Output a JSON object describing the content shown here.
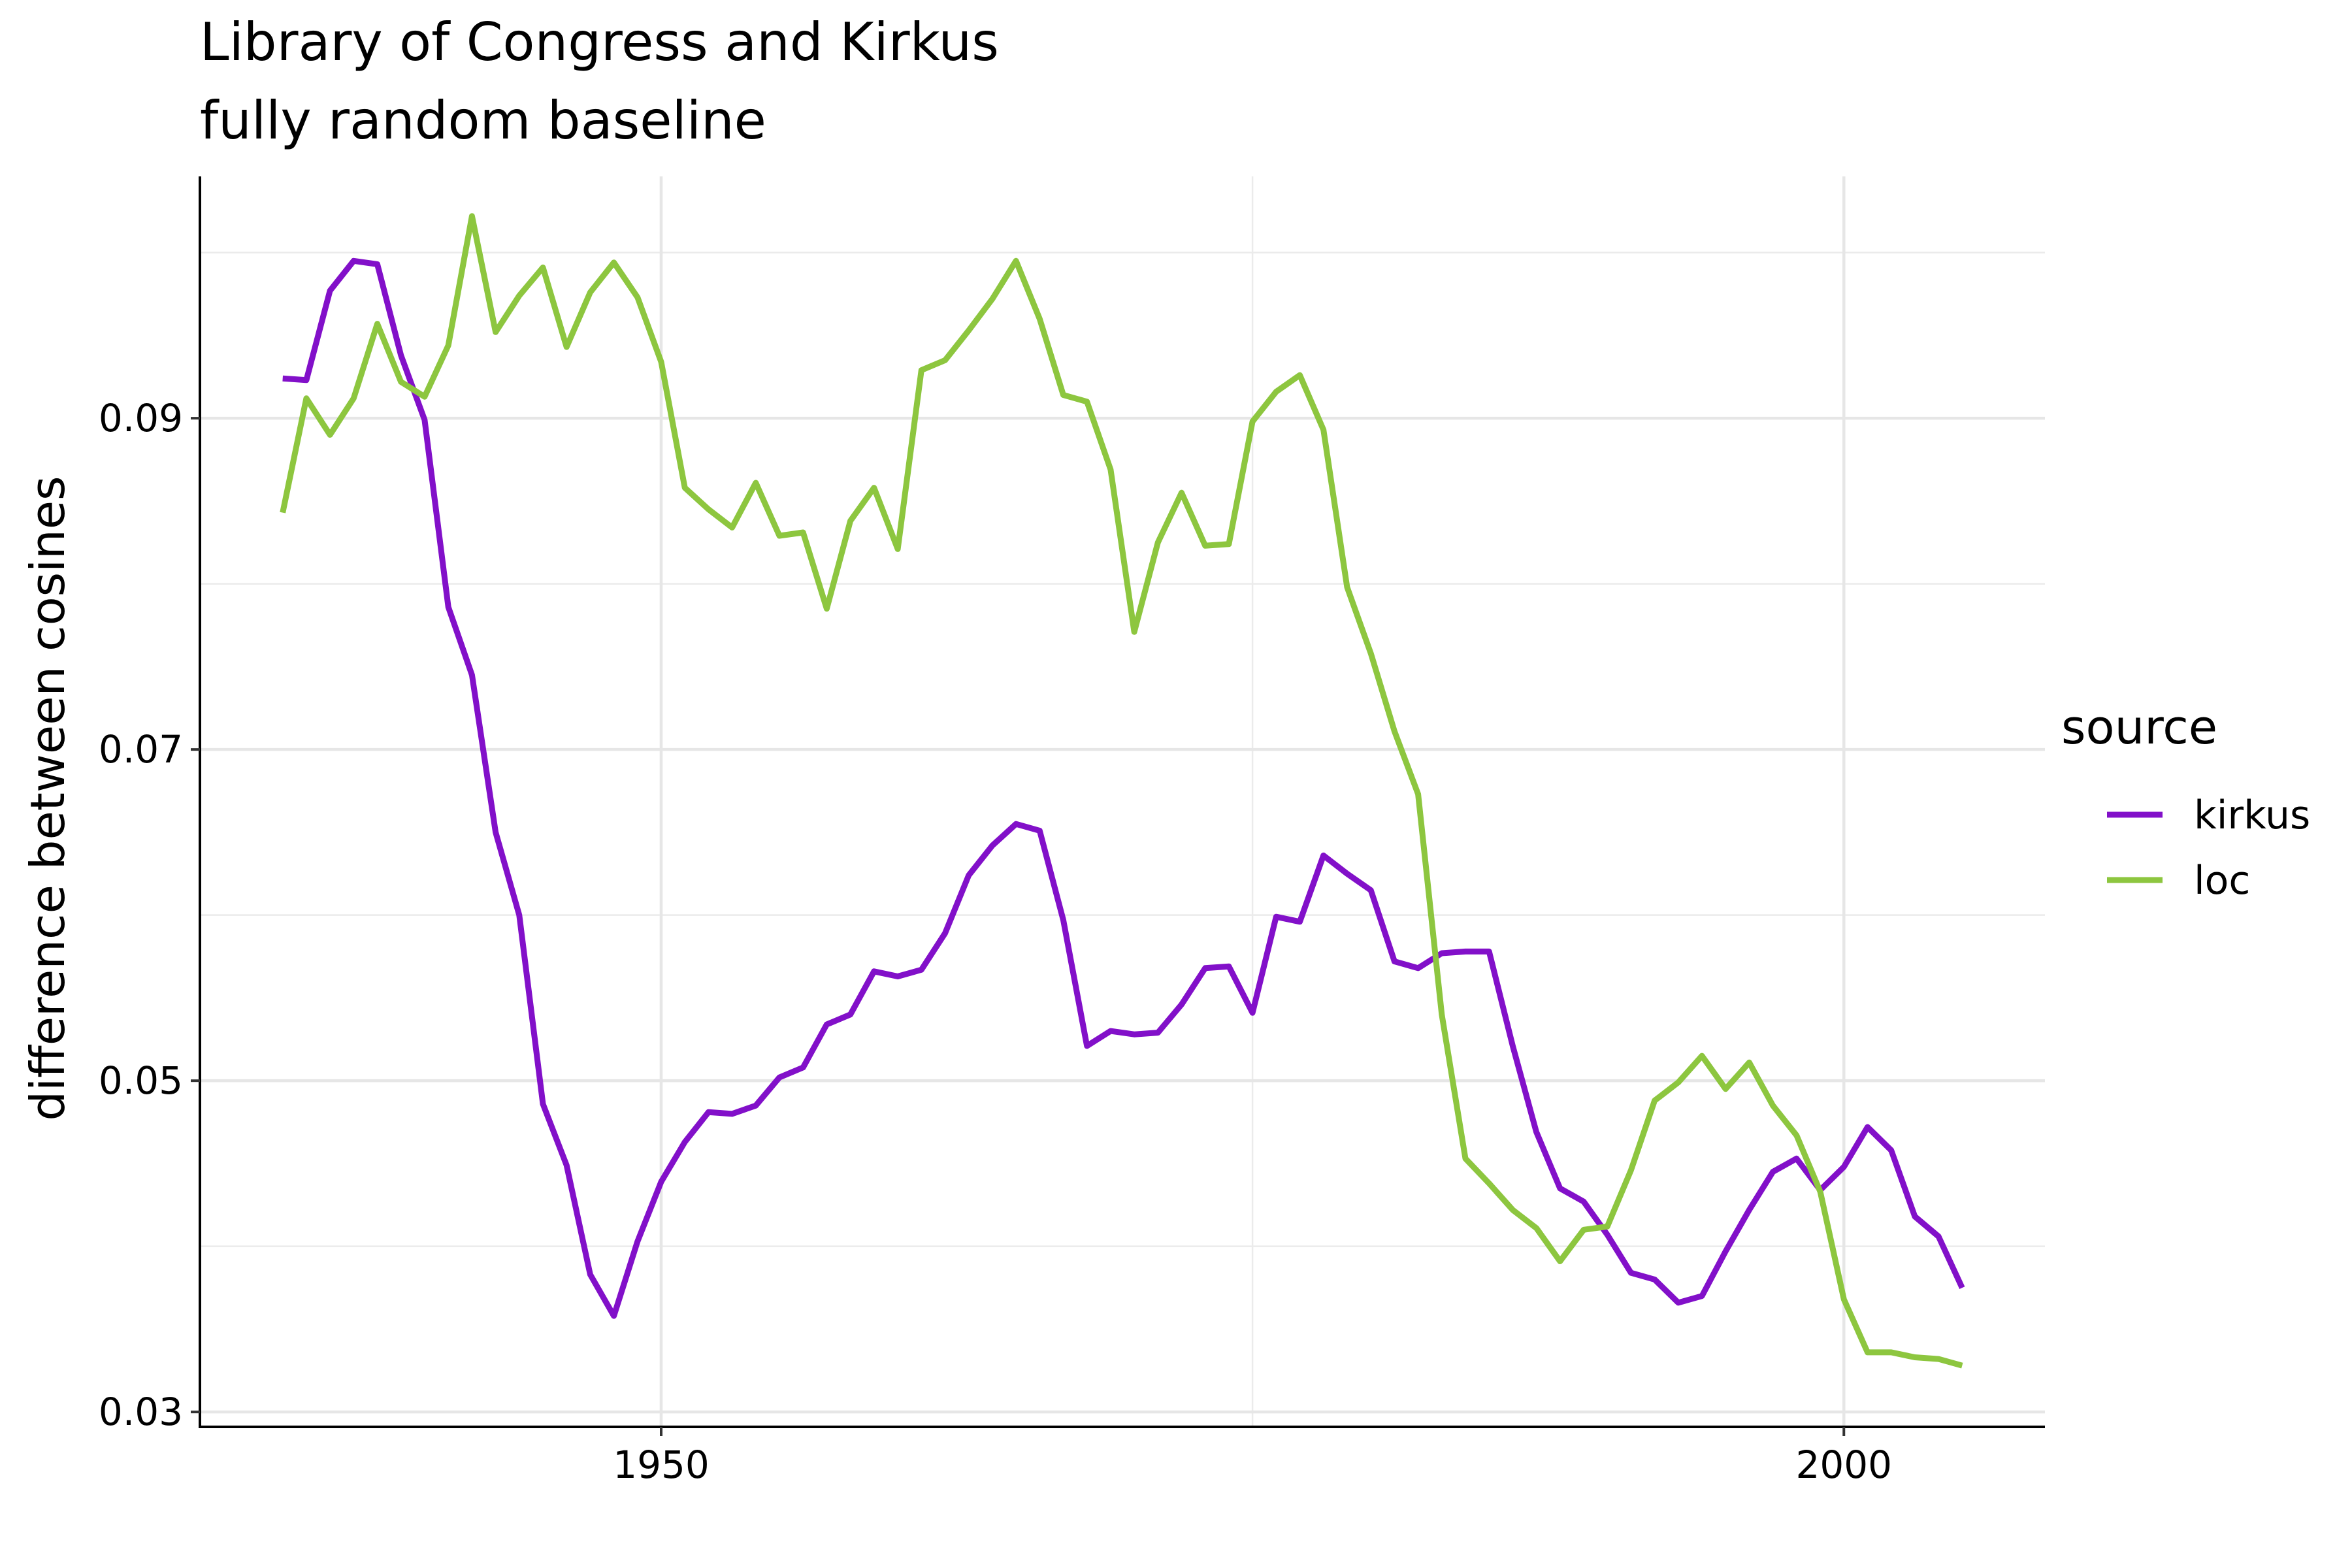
{
  "chart_data": {
    "type": "line",
    "title": "Library of Congress and Kirkus",
    "subtitle": "fully random baseline",
    "xlabel": "",
    "ylabel": "difference between cosines",
    "xlim": [
      1930.5,
      2008.5
    ],
    "ylim": [
      0.0291,
      0.1046
    ],
    "x_ticks": [
      1950,
      2000
    ],
    "x_tick_labels": [
      "1950",
      "2000"
    ],
    "x_minor_ticks": [
      1975
    ],
    "y_ticks": [
      0.03,
      0.05,
      0.07,
      0.09
    ],
    "y_tick_labels": [
      "0.03",
      "0.05",
      "0.07",
      "0.09"
    ],
    "y_minor_ticks": [
      0.04,
      0.06,
      0.08,
      0.1
    ],
    "grid": true,
    "legend": {
      "title": "source",
      "position": "right"
    },
    "series": [
      {
        "name": "kirkus",
        "color": "#8210c9",
        "x": [
          1934,
          1935,
          1936,
          1937,
          1938,
          1939,
          1940,
          1941,
          1942,
          1943,
          1944,
          1945,
          1946,
          1947,
          1948,
          1949,
          1950,
          1951,
          1952,
          1953,
          1954,
          1955,
          1956,
          1957,
          1958,
          1959,
          1960,
          1961,
          1962,
          1963,
          1964,
          1965,
          1966,
          1967,
          1968,
          1969,
          1970,
          1971,
          1972,
          1973,
          1974,
          1975,
          1976,
          1977,
          1978,
          1979,
          1980,
          1981,
          1982,
          1983,
          1984,
          1985,
          1986,
          1987,
          1988,
          1989,
          1990,
          1991,
          1992,
          1993,
          1994,
          1995,
          1996,
          1997,
          1998,
          1999,
          2000,
          2001,
          2002,
          2003,
          2004,
          2005
        ],
        "values": [
          0.0924,
          0.0923,
          0.0977,
          0.0995,
          0.0993,
          0.0938,
          0.0899,
          0.0786,
          0.0745,
          0.065,
          0.06,
          0.0486,
          0.0449,
          0.0383,
          0.0358,
          0.0403,
          0.0439,
          0.0463,
          0.0481,
          0.048,
          0.0485,
          0.0502,
          0.0508,
          0.0534,
          0.054,
          0.0566,
          0.0563,
          0.0567,
          0.0589,
          0.0624,
          0.0642,
          0.0655,
          0.0651,
          0.0597,
          0.0521,
          0.053,
          0.0528,
          0.0529,
          0.0546,
          0.0568,
          0.0569,
          0.0541,
          0.0599,
          0.0596,
          0.0636,
          0.0625,
          0.0615,
          0.0572,
          0.0568,
          0.0577,
          0.0578,
          0.0578,
          0.0521,
          0.0469,
          0.0435,
          0.0427,
          0.0407,
          0.0384,
          0.038,
          0.0366,
          0.037,
          0.0397,
          0.0422,
          0.0445,
          0.0453,
          0.0434,
          0.0448,
          0.0472,
          0.0458,
          0.0418,
          0.0406,
          0.0375
        ]
      },
      {
        "name": "loc",
        "color": "#8dc63f",
        "x": [
          1934,
          1935,
          1936,
          1937,
          1938,
          1939,
          1940,
          1941,
          1942,
          1943,
          1944,
          1945,
          1946,
          1947,
          1948,
          1949,
          1950,
          1951,
          1952,
          1953,
          1954,
          1955,
          1956,
          1957,
          1958,
          1959,
          1960,
          1961,
          1962,
          1963,
          1964,
          1965,
          1966,
          1967,
          1968,
          1969,
          1970,
          1971,
          1972,
          1973,
          1974,
          1975,
          1976,
          1977,
          1978,
          1979,
          1980,
          1981,
          1982,
          1983,
          1984,
          1985,
          1986,
          1987,
          1988,
          1989,
          1990,
          1991,
          1992,
          1993,
          1994,
          1995,
          1996,
          1997,
          1998,
          1999,
          2000,
          2001,
          2002,
          2003,
          2004,
          2005
        ],
        "values": [
          0.0843,
          0.0912,
          0.089,
          0.0912,
          0.0957,
          0.0922,
          0.0913,
          0.0944,
          0.1022,
          0.0952,
          0.0974,
          0.0991,
          0.0943,
          0.0976,
          0.0994,
          0.0973,
          0.0934,
          0.0858,
          0.0845,
          0.0834,
          0.0861,
          0.0829,
          0.0831,
          0.0785,
          0.0838,
          0.0858,
          0.0821,
          0.0929,
          0.0935,
          0.0953,
          0.0972,
          0.0995,
          0.096,
          0.0914,
          0.091,
          0.0869,
          0.0771,
          0.0825,
          0.0855,
          0.0823,
          0.0824,
          0.0898,
          0.0916,
          0.0926,
          0.0893,
          0.0798,
          0.0758,
          0.0711,
          0.0673,
          0.054,
          0.0453,
          0.0438,
          0.0422,
          0.0411,
          0.0391,
          0.041,
          0.0412,
          0.0446,
          0.0488,
          0.0499,
          0.0515,
          0.0495,
          0.0511,
          0.0485,
          0.0467,
          0.0433,
          0.0368,
          0.0336,
          0.0336,
          0.0333,
          0.0332,
          0.0328
        ]
      }
    ]
  }
}
